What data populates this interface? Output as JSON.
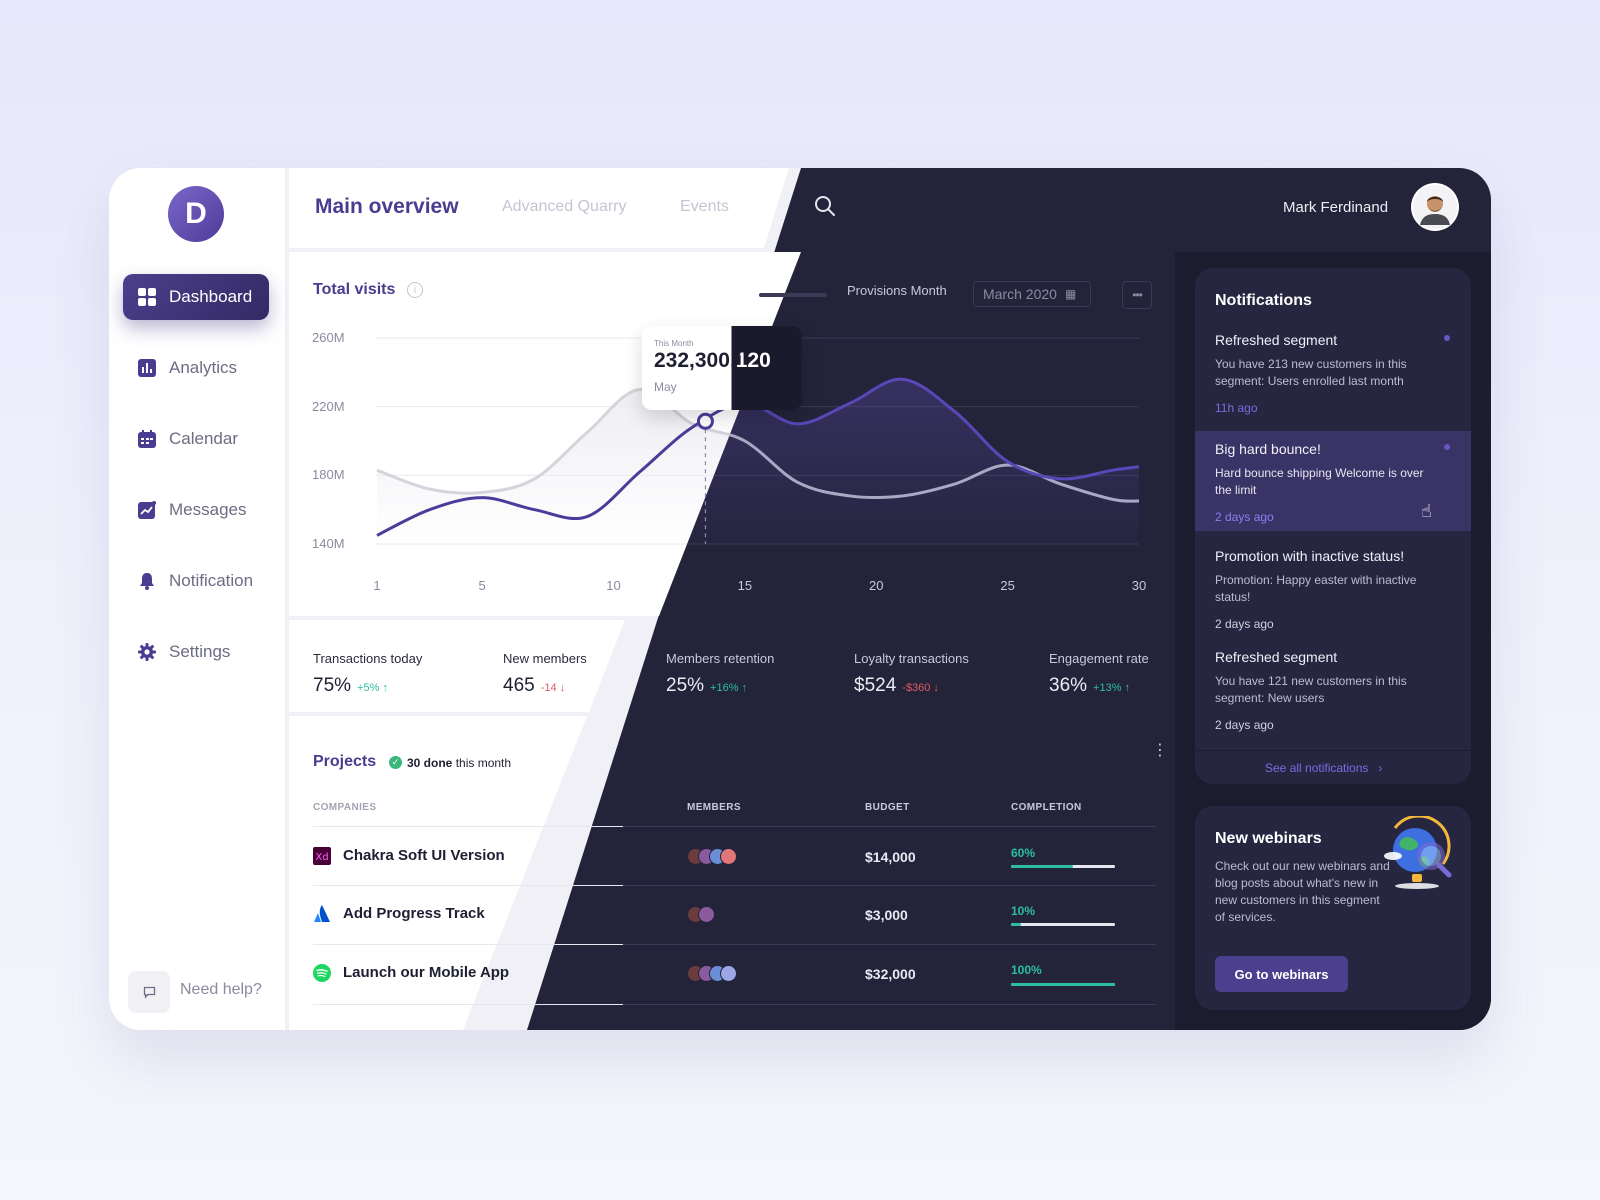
{
  "app": {
    "logo_letter": "D",
    "user_name": "Mark Ferdinand"
  },
  "sidebar": {
    "items": [
      {
        "label": "Dashboard",
        "icon": "grid-icon",
        "active": true
      },
      {
        "label": "Analytics",
        "icon": "bar-chart-icon"
      },
      {
        "label": "Calendar",
        "icon": "calendar-icon"
      },
      {
        "label": "Messages",
        "icon": "trend-chart-icon"
      },
      {
        "label": "Notification",
        "icon": "bell-icon"
      },
      {
        "label": "Settings",
        "icon": "gear-icon"
      }
    ],
    "help_label": "Need help?"
  },
  "header": {
    "title": "Main overview",
    "tabs": [
      "Advanced Quarry",
      "Events"
    ]
  },
  "chart_card": {
    "title": "Total visits",
    "provisions_label": "Provisions Month",
    "month_value": "March 2020",
    "tooltip": {
      "label": "This Month",
      "value": "232,300,120",
      "month": "May"
    }
  },
  "chart_data": {
    "type": "line",
    "x": [
      1,
      3,
      5,
      7,
      9,
      11,
      13,
      15,
      17,
      19,
      21,
      23,
      25,
      27,
      29,
      30
    ],
    "series": [
      {
        "values": [
          145,
          160,
          167,
          160,
          156,
          182,
          208,
          222,
          210,
          222,
          236,
          217,
          188,
          178,
          183,
          185
        ]
      },
      {
        "values": [
          183,
          172,
          170,
          178,
          205,
          230,
          210,
          200,
          176,
          168,
          168,
          175,
          186,
          175,
          166,
          165
        ]
      }
    ],
    "ylim": [
      140,
      260
    ],
    "yticks": [
      "260M",
      "220M",
      "180M",
      "140M"
    ],
    "xticks": [
      "1",
      "5",
      "10",
      "15",
      "20",
      "25",
      "30"
    ],
    "highlight_x": 13.5,
    "colors": {
      "primary": "#4c3c9a",
      "secondary": "#d4d4dc",
      "secondary_dark": "#a9a9c4"
    }
  },
  "stats": [
    {
      "label": "Transactions today",
      "value": "75%",
      "change": "+5%",
      "direction": "up"
    },
    {
      "label": "New members",
      "value": "465",
      "change": "-14",
      "direction": "down"
    },
    {
      "label": "Members retention",
      "value": "25%",
      "change": "+16%",
      "direction": "up"
    },
    {
      "label": "Loyalty transactions",
      "value": "$524",
      "change": "-$360",
      "direction": "down"
    },
    {
      "label": "Engagement rate",
      "value": "36%",
      "change": "+13%",
      "direction": "up"
    }
  ],
  "projects": {
    "title": "Projects",
    "done_count": "30 done",
    "done_suffix": "this month",
    "columns": [
      "COMPANIES",
      "MEMBERS",
      "BUDGET",
      "COMPLETION"
    ],
    "rows": [
      {
        "name": "Chakra Soft UI Version",
        "icon": "adobe-xd-icon",
        "budget": "$14,000",
        "completion": "60%",
        "progress": 0.6,
        "members": 4
      },
      {
        "name": "Add Progress Track",
        "icon": "atlassian-icon",
        "budget": "$3,000",
        "completion": "10%",
        "progress": 0.1,
        "members": 2
      },
      {
        "name": "Launch our Mobile App",
        "icon": "spotify-icon",
        "budget": "$32,000",
        "completion": "100%",
        "progress": 1.0,
        "members": 4
      }
    ]
  },
  "notifications": {
    "title": "Notifications",
    "items": [
      {
        "title": "Refreshed segment",
        "body": "You have 213 new customers in this segment: Users enrolled last month",
        "time": "11h ago",
        "unread": true
      },
      {
        "title": "Big hard bounce!",
        "body": "Hard bounce shipping Welcome is over the limit",
        "time": "2 days ago",
        "unread": true
      },
      {
        "title": "Promotion with inactive status!",
        "body": "Promotion: Happy easter with inactive status!",
        "time": "2 days ago",
        "unread": false
      },
      {
        "title": "Refreshed segment",
        "body": "You have 121 new customers in this segment: New users",
        "time": "2 days ago",
        "unread": false
      }
    ],
    "see_all": "See all notifications"
  },
  "webinar": {
    "title": "New webinars",
    "body": "Check out our new webinars and blog posts about what's new in new customers in this segment of services.",
    "button": "Go to webinars"
  },
  "colors": {
    "accent": "#4a3c90",
    "dark_bg": "#23233a",
    "success": "#2bbfa0",
    "danger": "#e15b5b"
  }
}
